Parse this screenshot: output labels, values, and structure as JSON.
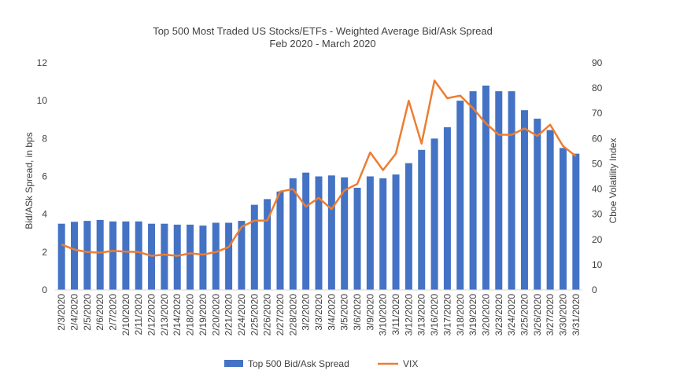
{
  "chart_data": {
    "type": "bar",
    "title": "Top 500 Most Traded US Stocks/ETFs - Weighted Average Bid/Ask Spread",
    "subtitle": "Feb 2020 - March 2020",
    "ylabel": "Bid/ASk Spread, in bps",
    "y2label": "Cboe Volatility Index",
    "xlabel": "",
    "ylim": [
      0,
      12
    ],
    "y2lim": [
      0,
      90
    ],
    "yticks": [
      "0",
      "2",
      "4",
      "6",
      "8",
      "10",
      "12"
    ],
    "y2ticks": [
      "0",
      "10",
      "20",
      "30",
      "40",
      "50",
      "60",
      "70",
      "80",
      "90"
    ],
    "grid": false,
    "legend_position": "bottom",
    "categories": [
      "2/3/2020",
      "2/4/2020",
      "2/5/2020",
      "2/6/2020",
      "2/7/2020",
      "2/10/2020",
      "2/11/2020",
      "2/12/2020",
      "2/13/2020",
      "2/14/2020",
      "2/18/2020",
      "2/19/2020",
      "2/20/2020",
      "2/21/2020",
      "2/24/2020",
      "2/25/2020",
      "2/26/2020",
      "2/27/2020",
      "2/28/2020",
      "3/2/2020",
      "3/3/2020",
      "3/4/2020",
      "3/5/2020",
      "3/6/2020",
      "3/9/2020",
      "3/10/2020",
      "3/11/2020",
      "3/12/2020",
      "3/13/2020",
      "3/16/2020",
      "3/17/2020",
      "3/18/2020",
      "3/19/2020",
      "3/20/2020",
      "3/23/2020",
      "3/24/2020",
      "3/25/2020",
      "3/26/2020",
      "3/27/2020",
      "3/30/2020",
      "3/31/2020"
    ],
    "series": [
      {
        "name": "Top 500 Bid/Ask Spread",
        "type": "bar",
        "axis": "left",
        "color": "#4472C4",
        "values": [
          3.5,
          3.6,
          3.65,
          3.7,
          3.62,
          3.62,
          3.62,
          3.5,
          3.5,
          3.45,
          3.45,
          3.4,
          3.55,
          3.55,
          3.65,
          4.5,
          4.8,
          5.2,
          5.9,
          6.2,
          6.0,
          6.05,
          5.95,
          5.4,
          6.0,
          5.9,
          6.1,
          6.7,
          7.4,
          8.0,
          8.6,
          10.0,
          10.5,
          10.8,
          10.5,
          10.5,
          9.5,
          9.05,
          8.45,
          7.5,
          7.2
        ]
      },
      {
        "name": "VIX",
        "type": "line",
        "axis": "right",
        "color": "#ED7D31",
        "values": [
          18,
          16,
          15,
          14.8,
          15.5,
          15.2,
          15,
          13.5,
          14,
          13.5,
          14.5,
          14,
          15,
          17,
          25,
          27.5,
          27.5,
          39,
          40,
          33,
          36.5,
          32,
          39.5,
          42,
          54.5,
          47.5,
          54,
          75,
          58,
          83,
          76,
          77,
          72,
          66,
          61.5,
          61.5,
          64,
          61,
          65.5,
          57,
          53
        ]
      }
    ]
  },
  "legend": {
    "items": [
      {
        "label": "Top 500 Bid/Ask Spread",
        "color": "#4472C4"
      },
      {
        "label": "VIX",
        "color": "#ED7D31"
      }
    ]
  }
}
